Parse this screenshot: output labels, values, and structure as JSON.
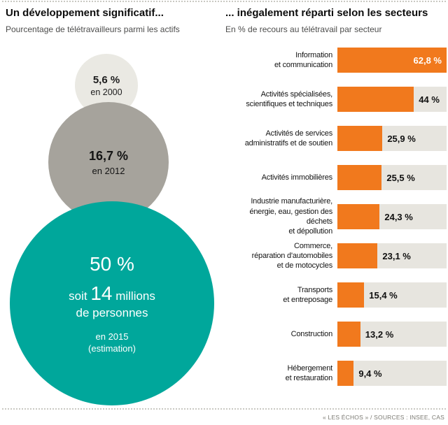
{
  "header": {
    "left_title": "Un développement significatif...",
    "left_subtitle": "Pourcentage de télétravailleurs parmi les actifs",
    "right_title": "... inégalement réparti selon les secteurs",
    "right_subtitle": "En % de recours au télétravail par secteur"
  },
  "left_panel": {
    "bubbles": [
      {
        "value": "5,6 %",
        "year": "en 2000"
      },
      {
        "value": "16,7 %",
        "year": "en 2012"
      },
      {
        "value": "50 %",
        "detail_prefix": "soit",
        "detail_number": "14",
        "detail_suffix": "millions",
        "detail_line2": "de personnes",
        "year": "en 2015",
        "note": "(estimation)"
      }
    ]
  },
  "footer": {
    "credit": "« LES ÉCHOS » / SOURCES : INSEE, CAS"
  },
  "colors": {
    "teal": "#00a79b",
    "orange": "#f1791d",
    "bar_track": "#e7e5df",
    "circle_small": "#eae9e3",
    "circle_medium": "#a6a39c"
  },
  "chart_data": [
    {
      "type": "scatter",
      "subtype": "proportional-bubbles",
      "title": "Un développement significatif...",
      "subtitle": "Pourcentage de télétravailleurs parmi les actifs",
      "points": [
        {
          "label": "en 2000",
          "value": 5.6,
          "display": "5,6 %"
        },
        {
          "label": "en 2012",
          "value": 16.7,
          "display": "16,7 %"
        },
        {
          "label": "en 2015 (estimation)",
          "value": 50,
          "display": "50 %",
          "note": "soit 14 millions de personnes"
        }
      ]
    },
    {
      "type": "bar",
      "orientation": "horizontal",
      "title": "... inégalement réparti selon les secteurs",
      "subtitle": "En % de recours au télétravail par secteur",
      "categories": [
        "Information\net communication",
        "Activités spécialisées,\nscientifiques et techniques",
        "Activités de services\nadministratifs et de soutien",
        "Activités immobilières",
        "Industrie manufacturière,\nénergie, eau, gestion des déchets\net dépollution",
        "Commerce,\nréparation d'automobiles\net de motocycles",
        "Transports\net entreposage",
        "Construction",
        "Hébergement\net restauration"
      ],
      "values": [
        62.8,
        44,
        25.9,
        25.5,
        24.3,
        23.1,
        15.4,
        13.2,
        9.4
      ],
      "value_labels": [
        "62,8 %",
        "44 %",
        "25,9 %",
        "25,5 %",
        "24,3 %",
        "23,1 %",
        "15,4 %",
        "13,2 %",
        "9,4 %"
      ],
      "xlim": [
        0,
        62.8
      ],
      "grid": false,
      "legend": null
    }
  ]
}
